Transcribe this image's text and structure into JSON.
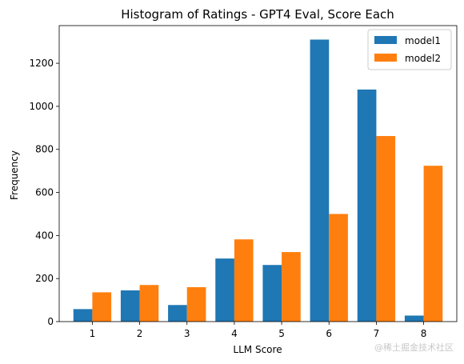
{
  "chart_data": {
    "type": "bar",
    "title": "Histogram of Ratings - GPT4 Eval, Score Each",
    "xlabel": "LLM Score",
    "ylabel": "Frequency",
    "categories": [
      "1",
      "2",
      "3",
      "4",
      "5",
      "6",
      "7",
      "8"
    ],
    "series": [
      {
        "name": "model1",
        "color": "#1f77b4",
        "values": [
          58,
          145,
          77,
          293,
          263,
          1310,
          1078,
          28
        ]
      },
      {
        "name": "model2",
        "color": "#ff7f0e",
        "values": [
          136,
          170,
          160,
          382,
          323,
          500,
          862,
          724
        ]
      }
    ],
    "ylim": [
      0,
      1375
    ],
    "yticks": [
      0,
      200,
      400,
      600,
      800,
      1000,
      1200
    ],
    "grid": false,
    "legend": "top-right"
  },
  "watermark": "@稀土掘金技术社区"
}
